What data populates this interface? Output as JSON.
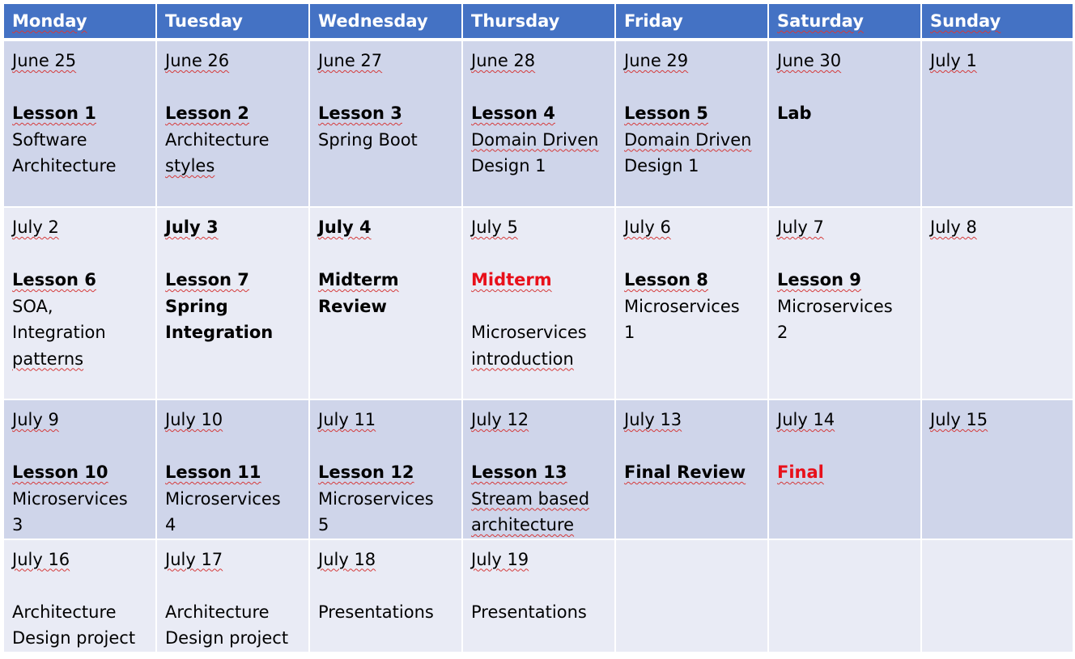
{
  "header": {
    "days": [
      "Monday",
      "Tuesday",
      "Wednesday",
      "Thursday",
      "Friday",
      "Saturday",
      "Sunday"
    ]
  },
  "weeks": [
    {
      "cells": [
        {
          "date": "June 25",
          "lesson": "Lesson 1",
          "topic": [
            "Software",
            "Architecture"
          ]
        },
        {
          "date": "June 26",
          "lesson": "Lesson 2",
          "topic": [
            "Architecture",
            "styles"
          ]
        },
        {
          "date": "June 27",
          "lesson": "Lesson 3",
          "topic": [
            "Spring Boot"
          ]
        },
        {
          "date": "June 28",
          "lesson": "Lesson 4",
          "topic": [
            "Domain Driven",
            "Design 1"
          ]
        },
        {
          "date": "June 29",
          "lesson": "Lesson 5",
          "topic": [
            "Domain Driven",
            "Design 1"
          ]
        },
        {
          "date": "June 30",
          "lesson": "Lab",
          "topic": []
        },
        {
          "date": "July 1",
          "lesson": "",
          "topic": []
        }
      ]
    },
    {
      "cells": [
        {
          "date": "July 2",
          "lesson": "Lesson 6",
          "topic": [
            "SOA,",
            "Integration",
            "patterns"
          ]
        },
        {
          "date": "July 3",
          "lesson": "Lesson 7",
          "topic": [
            "Spring",
            "Integration"
          ]
        },
        {
          "date": "July 4",
          "lesson": "Midterm",
          "topic": [
            "Review"
          ]
        },
        {
          "date": "July 5",
          "lesson": "Midterm",
          "topic": [
            "Microservices",
            "introduction"
          ]
        },
        {
          "date": "July 6",
          "lesson": "Lesson 8",
          "topic": [
            "Microservices",
            "1"
          ]
        },
        {
          "date": "July 7",
          "lesson": "Lesson 9",
          "topic": [
            "Microservices",
            "2"
          ]
        },
        {
          "date": "July 8",
          "lesson": "",
          "topic": []
        }
      ]
    },
    {
      "cells": [
        {
          "date": "July 9",
          "lesson": "Lesson 10",
          "topic": [
            "Microservices",
            "3"
          ]
        },
        {
          "date": "July 10",
          "lesson": "Lesson 11",
          "topic": [
            "Microservices",
            "4"
          ]
        },
        {
          "date": "July 11",
          "lesson": "Lesson 12",
          "topic": [
            "Microservices",
            "5"
          ]
        },
        {
          "date": "July 12",
          "lesson": "Lesson 13",
          "topic": [
            "Stream based",
            "architecture"
          ]
        },
        {
          "date": "July 13",
          "lesson": "Final Review",
          "topic": []
        },
        {
          "date": "July 14",
          "lesson": "Final",
          "topic": []
        },
        {
          "date": "July 15",
          "lesson": "",
          "topic": []
        }
      ]
    },
    {
      "cells": [
        {
          "date": "July 16",
          "lesson": "",
          "topic": [
            "Architecture",
            "Design project"
          ]
        },
        {
          "date": "July 17",
          "lesson": "",
          "topic": [
            "Architecture",
            "Design project"
          ]
        },
        {
          "date": "July 18",
          "lesson": "",
          "topic": [
            "Presentations"
          ]
        },
        {
          "date": "July 19",
          "lesson": "",
          "topic": [
            "Presentations"
          ]
        },
        {
          "date": "",
          "lesson": "",
          "topic": []
        },
        {
          "date": "",
          "lesson": "",
          "topic": []
        },
        {
          "date": "",
          "lesson": "",
          "topic": []
        }
      ]
    }
  ],
  "colors": {
    "header_bg": "#4472c4",
    "row_dark": "#cfd5ea",
    "row_light": "#e9ebf5",
    "exam_red": "#e8101a"
  }
}
